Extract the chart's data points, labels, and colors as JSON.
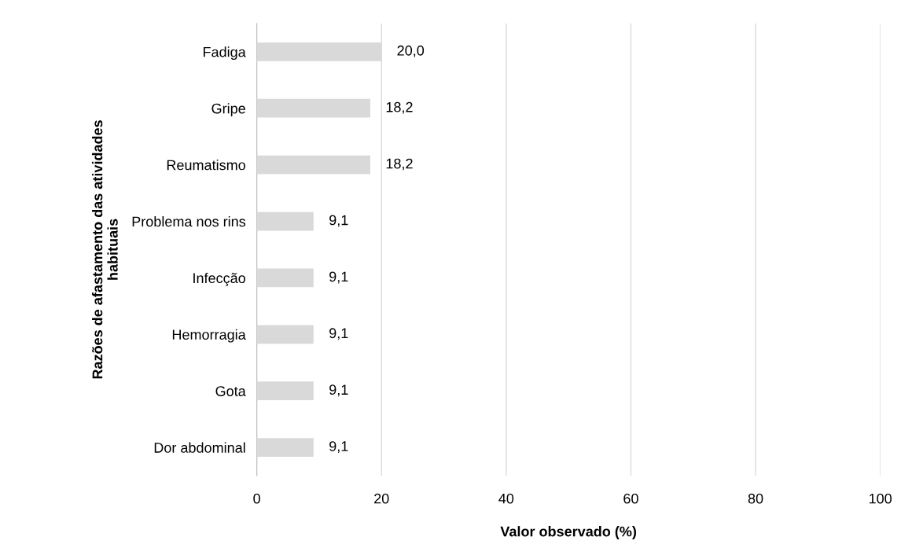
{
  "chart_data": {
    "type": "bar",
    "orientation": "horizontal",
    "xlabel": "Valor observado (%)",
    "ylabel": "Razões de afastamento das atividades\nhabituais",
    "categories": [
      "Fadiga",
      "Gripe",
      "Reumatismo",
      "Problema nos rins",
      "Infecção",
      "Hemorragia",
      "Gota",
      "Dor abdominal"
    ],
    "values": [
      20.0,
      18.2,
      18.2,
      9.1,
      9.1,
      9.1,
      9.1,
      9.1
    ],
    "value_labels": [
      "20,0",
      "18,2",
      "18,2",
      "9,1",
      "9,1",
      "9,1",
      "9,1",
      "9,1"
    ],
    "color": "#d9d9d9",
    "xlim": [
      0,
      100
    ],
    "xticks": [
      0,
      20,
      40,
      60,
      80,
      100
    ],
    "grid": "x",
    "legend": false
  }
}
